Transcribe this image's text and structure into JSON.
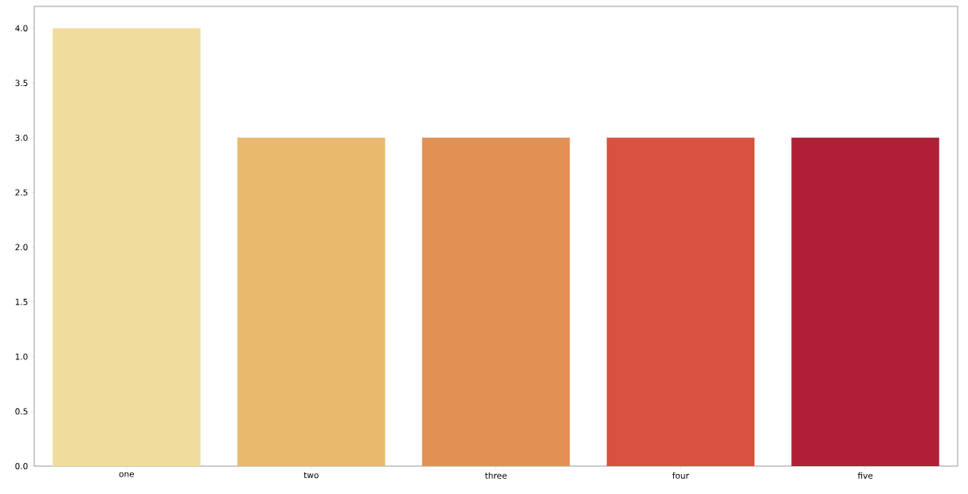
{
  "chart_data": {
    "type": "bar",
    "categories": [
      "one",
      "two",
      "three",
      "four",
      "five"
    ],
    "values": [
      4,
      3,
      3,
      3,
      3
    ],
    "colors": [
      "#f0dc9c",
      "#e9b96e",
      "#e39055",
      "#d95140",
      "#b01f35"
    ],
    "ylim": [
      0,
      4.2
    ],
    "yticks": [
      {
        "value": 0,
        "label": "0.0"
      },
      {
        "value": 0.5,
        "label": "0.5"
      },
      {
        "value": 1,
        "label": "1.0"
      },
      {
        "value": 1.5,
        "label": "1.5"
      },
      {
        "value": 2,
        "label": "2.0"
      },
      {
        "value": 2.5,
        "label": "2.5"
      },
      {
        "value": 3,
        "label": "3.0"
      },
      {
        "value": 3.5,
        "label": "3.5"
      },
      {
        "value": 4,
        "label": "4.0"
      }
    ]
  }
}
